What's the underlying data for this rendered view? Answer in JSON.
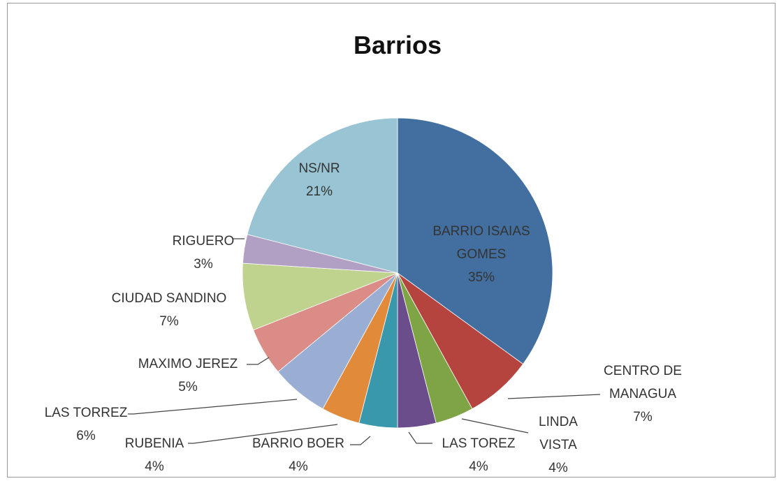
{
  "chart_data": {
    "type": "pie",
    "title": "Barrios",
    "slices": [
      {
        "label": "BARRIO ISAIAS GOMES",
        "label_lines": [
          "BARRIO ISAIAS",
          "GOMES"
        ],
        "value": 35,
        "pct_label": "35%",
        "color": "#426F9F"
      },
      {
        "label": "CENTRO DE MANAGUA",
        "label_lines": [
          "CENTRO DE",
          "MANAGUA"
        ],
        "value": 7,
        "pct_label": "7%",
        "color": "#B5433E"
      },
      {
        "label": "LINDA VISTA",
        "label_lines": [
          "LINDA",
          "VISTA"
        ],
        "value": 4,
        "pct_label": "4%",
        "color": "#7FA445"
      },
      {
        "label": "LAS TOREZ",
        "label_lines": [
          "LAS TOREZ"
        ],
        "value": 4,
        "pct_label": "4%",
        "color": "#6B4D8C"
      },
      {
        "label": "BARRIO BOER",
        "label_lines": [
          "BARRIO BOER"
        ],
        "value": 4,
        "pct_label": "4%",
        "color": "#3A98AC"
      },
      {
        "label": "RUBENIA",
        "label_lines": [
          "RUBENIA"
        ],
        "value": 4,
        "pct_label": "4%",
        "color": "#E08A3A"
      },
      {
        "label": "LAS TORREZ",
        "label_lines": [
          "LAS TORREZ"
        ],
        "value": 6,
        "pct_label": "6%",
        "color": "#9AAED3"
      },
      {
        "label": "MAXIMO JEREZ",
        "label_lines": [
          "MAXIMO JEREZ"
        ],
        "value": 5,
        "pct_label": "5%",
        "color": "#DB8C87"
      },
      {
        "label": "CIUDAD SANDINO",
        "label_lines": [
          "CIUDAD SANDINO"
        ],
        "value": 7,
        "pct_label": "7%",
        "color": "#BFD38E"
      },
      {
        "label": "RIGUERO",
        "label_lines": [
          "RIGUERO"
        ],
        "value": 3,
        "pct_label": "3%",
        "color": "#B19FC4"
      },
      {
        "label": "NS/NR",
        "label_lines": [
          "NS/NR"
        ],
        "value": 21,
        "pct_label": "21%",
        "color": "#98C4D3"
      }
    ],
    "legend": "none",
    "start": "top-clockwise"
  }
}
